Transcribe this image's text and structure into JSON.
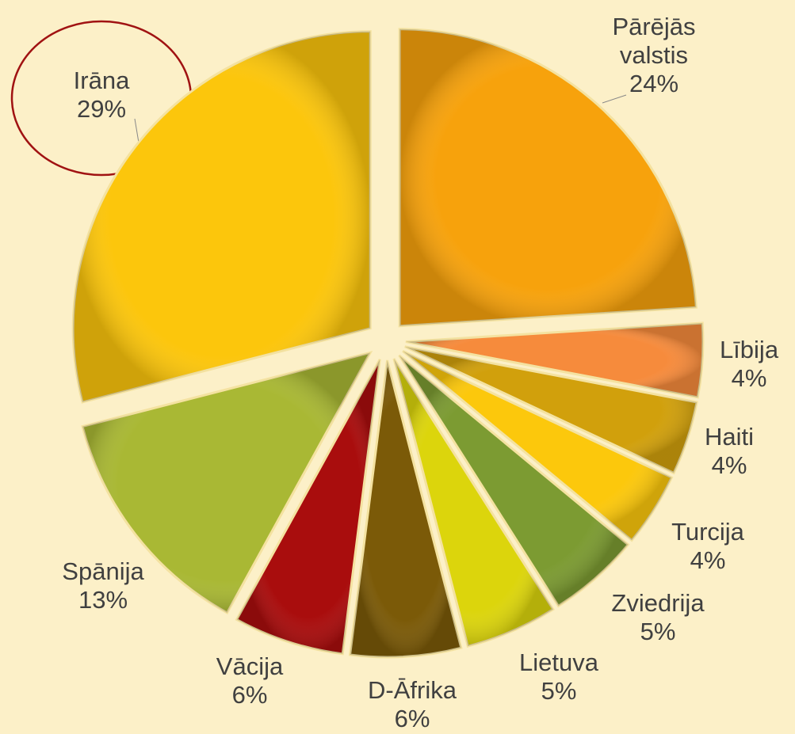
{
  "chart_data": {
    "type": "pie",
    "categories": [
      "Pārējās valstis",
      "Lībija",
      "Haiti",
      "Turcija",
      "Zviedrija",
      "Lietuva",
      "D-Āfrika",
      "Vācija",
      "Spānija",
      "Irāna"
    ],
    "values": [
      24,
      4,
      4,
      4,
      5,
      5,
      6,
      6,
      13,
      29
    ],
    "value_labels": [
      "24%",
      "4%",
      "4%",
      "4%",
      "5%",
      "5%",
      "6%",
      "6%",
      "13%",
      "29%"
    ],
    "colors": [
      "#f7a20c",
      "#f68b3c",
      "#d1a00c",
      "#fcc80c",
      "#7c9b32",
      "#dcd50c",
      "#7b5a08",
      "#a90d0d",
      "#a9b834",
      "#fcc60c"
    ]
  }
}
